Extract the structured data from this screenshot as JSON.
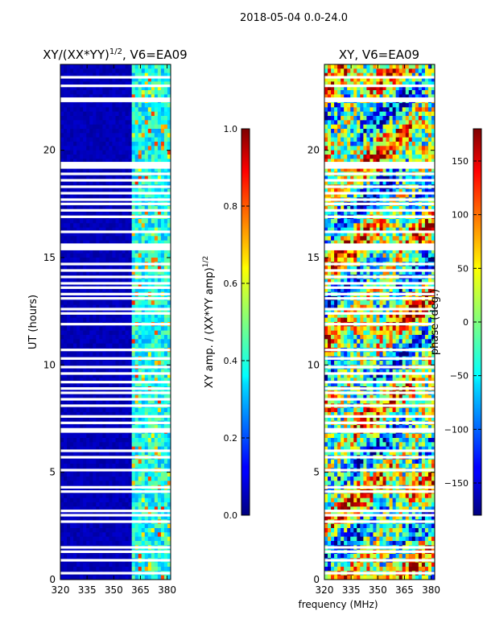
{
  "suptitle": "2018-05-04 0.0-24.0",
  "xlabel_shared": "frequency (MHz)",
  "colors": {
    "jet_low": "#00007f",
    "jet_mid": "#7fff7f",
    "jet_high": "#7f0000",
    "axis": "#000000"
  },
  "chart_data": [
    {
      "type": "heatmap",
      "title_main": "XY/(XX*YY)",
      "title_sup": "1/2",
      "title_tail": ", V6=EA09",
      "xlabel": "",
      "ylabel": "UT (hours)",
      "xlim": [
        320,
        382
      ],
      "ylim": [
        0,
        24
      ],
      "xticks": [
        "320",
        "335",
        "350",
        "365",
        "380"
      ],
      "xtick_values": [
        320,
        335,
        350,
        365,
        380
      ],
      "yticks": [
        "0",
        "5",
        "10",
        "15",
        "20"
      ],
      "ytick_values": [
        0,
        5,
        10,
        15,
        20
      ],
      "colorbar": {
        "label_main": "XY amp. / (XX*YY amp)",
        "label_sup": "1/2",
        "range": [
          0.0,
          1.0
        ],
        "ticks": [
          "0.0",
          "0.2",
          "0.4",
          "0.6",
          "0.8",
          "1.0"
        ],
        "tick_values": [
          0.0,
          0.2,
          0.4,
          0.6,
          0.8,
          1.0
        ]
      },
      "active_band_mhz": [
        361,
        382
      ],
      "gaps_ut": [
        0.3,
        0.9,
        1.3,
        1.5,
        2.7,
        3.0,
        3.2,
        4.1,
        4.3,
        5.1,
        5.7,
        6.0,
        6.9,
        7.0,
        7.3,
        7.6,
        8.1,
        8.4,
        8.7,
        8.9,
        9.2,
        9.6,
        9.9,
        10.3,
        10.7,
        11.9,
        12.4,
        12.6,
        13.1,
        13.3,
        13.6,
        13.8,
        14.1,
        14.4,
        14.7,
        15.4,
        15.5,
        15.6,
        16.2,
        16.9,
        17.2,
        17.5,
        17.7,
        18.0,
        18.3,
        18.6,
        18.9,
        19.2,
        19.3,
        19.4,
        22.3,
        22.4,
        23.0,
        23.4
      ]
    },
    {
      "type": "heatmap",
      "title_main": "XY, V6=EA09",
      "title_sup": "",
      "title_tail": "",
      "xlabel": "frequency (MHz)",
      "ylabel": "",
      "xlim": [
        320,
        382
      ],
      "ylim": [
        0,
        24
      ],
      "xticks": [
        "320",
        "335",
        "350",
        "365",
        "380"
      ],
      "xtick_values": [
        320,
        335,
        350,
        365,
        380
      ],
      "yticks": [
        "0",
        "5",
        "10",
        "15",
        "20"
      ],
      "ytick_values": [
        0,
        5,
        10,
        15,
        20
      ],
      "colorbar": {
        "label_main": "phase (deg.)",
        "label_sup": "",
        "range": [
          -180,
          180
        ],
        "ticks": [
          "−150",
          "−100",
          "−50",
          "0",
          "50",
          "100",
          "150"
        ],
        "tick_values": [
          -150,
          -100,
          -50,
          0,
          50,
          100,
          150
        ]
      },
      "gaps_ut": [
        0.3,
        0.9,
        1.3,
        1.5,
        2.7,
        3.0,
        3.2,
        4.1,
        4.3,
        5.1,
        5.7,
        6.0,
        6.9,
        7.0,
        7.3,
        7.6,
        8.1,
        8.4,
        8.7,
        8.9,
        9.2,
        9.6,
        9.9,
        10.3,
        10.7,
        11.9,
        12.4,
        12.6,
        13.1,
        13.3,
        13.6,
        13.8,
        14.1,
        14.4,
        14.7,
        15.4,
        15.5,
        15.6,
        16.2,
        16.9,
        17.2,
        17.5,
        17.7,
        18.0,
        18.3,
        18.6,
        18.9,
        19.2,
        19.3,
        19.4,
        22.3,
        22.4,
        23.0,
        23.4
      ]
    }
  ]
}
